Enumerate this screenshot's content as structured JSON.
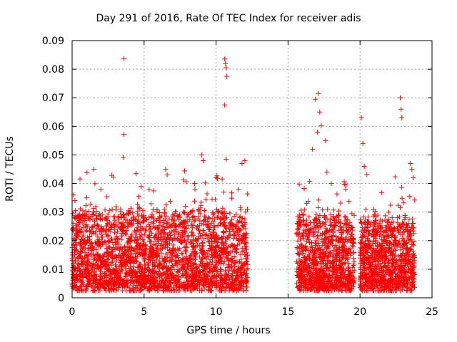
{
  "chart_data": {
    "type": "scatter",
    "title": "Day 291 of 2016, Rate Of TEC Index for receiver adis",
    "xlabel": "GPS time / hours",
    "ylabel": "ROTI / TECUs",
    "xlim": [
      0,
      25
    ],
    "ylim": [
      0,
      0.09
    ],
    "xticks": [
      "0",
      "5",
      "10",
      "15",
      "20",
      "25"
    ],
    "yticks": [
      "0",
      "0.01",
      "0.02",
      "0.03",
      "0.04",
      "0.05",
      "0.06",
      "0.07",
      "0.08",
      "0.09"
    ],
    "grid": true,
    "marker": "+",
    "color": "#ff0000",
    "segments": [
      {
        "start": 0.0,
        "end": 12.2,
        "base": 0.012,
        "spread": 0.012
      },
      {
        "start": 15.6,
        "end": 19.6,
        "base": 0.012,
        "spread": 0.011
      },
      {
        "start": 20.0,
        "end": 23.8,
        "base": 0.012,
        "spread": 0.011
      }
    ],
    "series": [
      {
        "name": "ROTI",
        "x": [
          3.6,
          3.6,
          3.55,
          10.6,
          10.65,
          10.7,
          10.75,
          10.6,
          10.7,
          16.9,
          17.1,
          17.2,
          17.3,
          17.05,
          22.8,
          22.85,
          22.9,
          20.1,
          20.2,
          20.3,
          0.1,
          0.2,
          6.5,
          6.6,
          9.0,
          9.1,
          16.7,
          17.6,
          17.7,
          23.5,
          23.6,
          23.7,
          12.0,
          11.8,
          2.0,
          1.0,
          8.5,
          10.0,
          16.3,
          18.0,
          19.0,
          21.0,
          22.0
        ],
        "y": [
          0.0837,
          0.0572,
          0.0492,
          0.0836,
          0.082,
          0.0805,
          0.0775,
          0.0675,
          0.0485,
          0.0695,
          0.0715,
          0.065,
          0.0602,
          0.058,
          0.07,
          0.066,
          0.063,
          0.063,
          0.054,
          0.046,
          0.036,
          0.034,
          0.045,
          0.043,
          0.05,
          0.048,
          0.052,
          0.055,
          0.044,
          0.047,
          0.045,
          0.042,
          0.048,
          0.047,
          0.038,
          0.035,
          0.04,
          0.042,
          0.033,
          0.04,
          0.038,
          0.029,
          0.03
        ]
      }
    ]
  }
}
